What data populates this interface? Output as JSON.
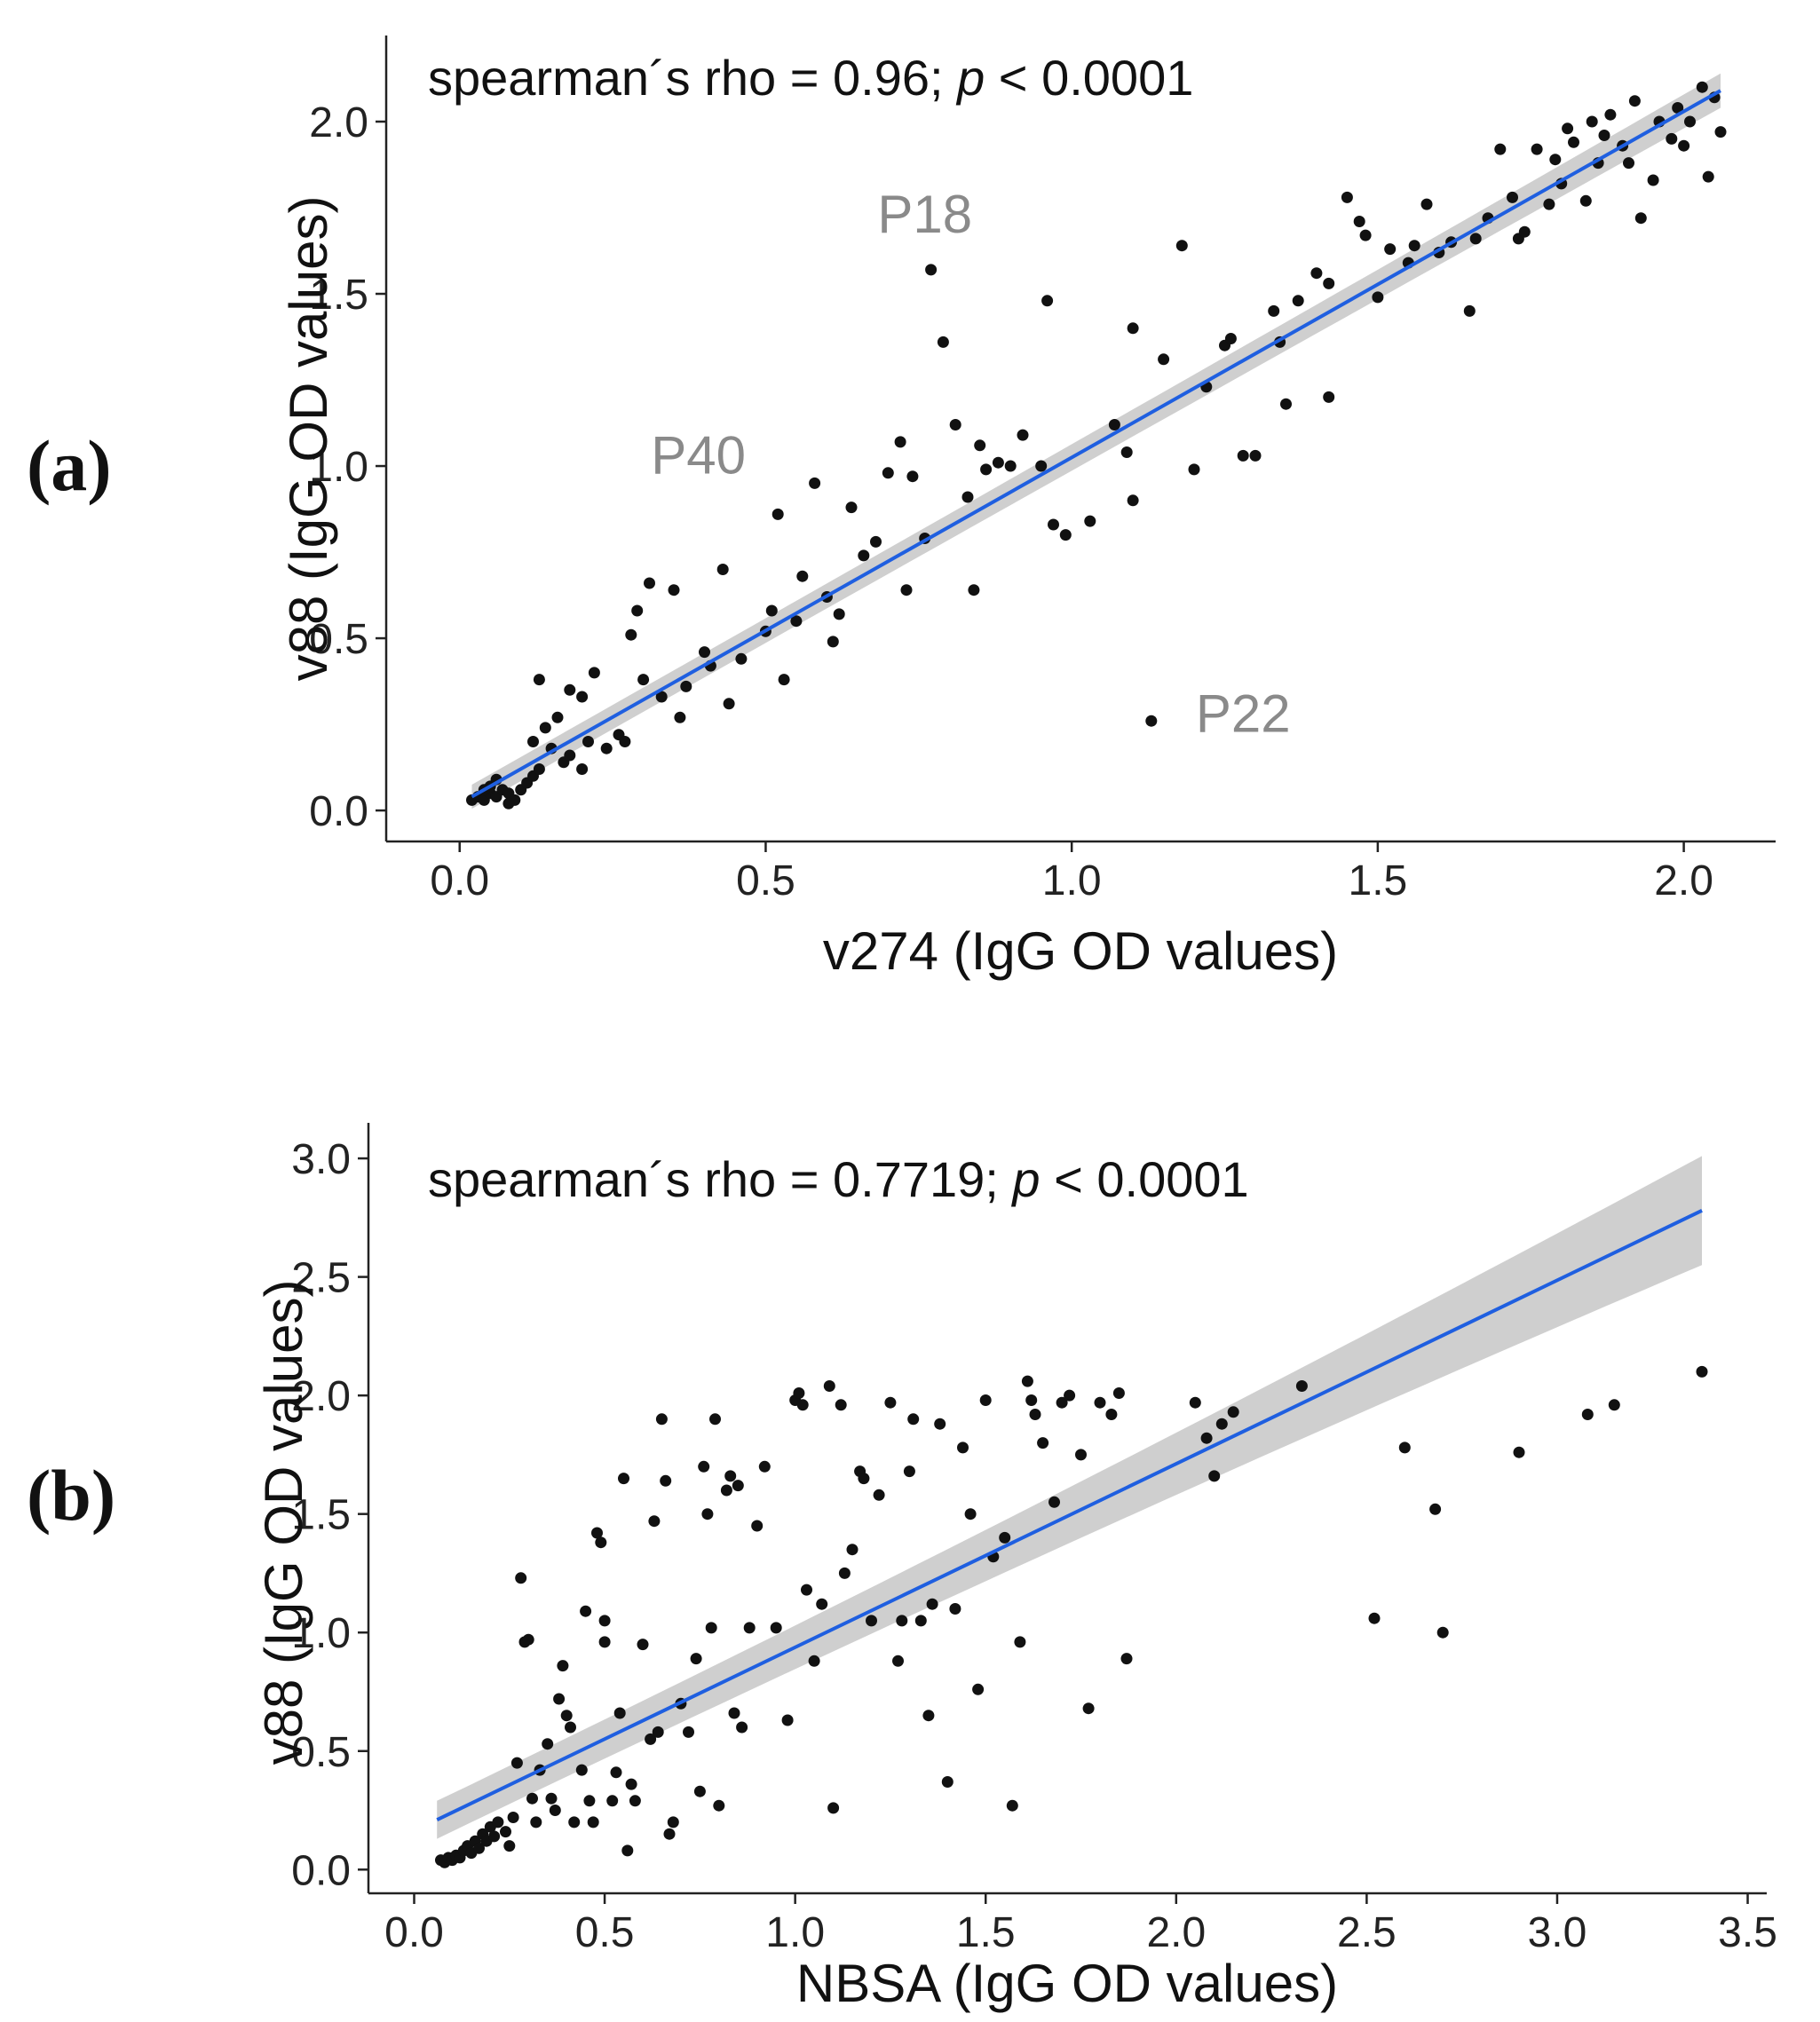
{
  "chart_data": [
    {
      "type": "scatter",
      "panel_label": "(a)",
      "title": "",
      "annotation": {
        "prefix": "spearman´s rho = 0.96; ",
        "italic": "p",
        "suffix": " < 0.0001"
      },
      "xlabel": "v274 (IgG OD values)",
      "ylabel": "v88 (IgG OD values)",
      "xlim": [
        -0.12,
        2.15
      ],
      "ylim": [
        -0.09,
        2.25
      ],
      "xticks": [
        0.0,
        0.5,
        1.0,
        1.5,
        2.0
      ],
      "yticks": [
        0.0,
        0.5,
        1.0,
        1.5,
        2.0
      ],
      "xtick_labels": [
        "0.0",
        "0.5",
        "1.0",
        "1.5",
        "2.0"
      ],
      "ytick_labels": [
        "0.0",
        "0.5",
        "1.0",
        "1.5",
        "2.0"
      ],
      "fit": {
        "x0": 0.02,
        "y0": 0.04,
        "x1": 2.06,
        "y1": 2.09,
        "ci_start": 0.035,
        "ci_end": 0.05
      },
      "line_color": "#1f5fe0",
      "ci_color": "#cfcfcf",
      "point_color": "#111111",
      "labels": [
        {
          "text": "P18",
          "x": 0.76,
          "y": 1.73
        },
        {
          "text": "P40",
          "x": 0.39,
          "y": 1.03
        },
        {
          "text": "P22",
          "x": 1.28,
          "y": 0.28
        }
      ],
      "points": [
        [
          0.02,
          0.03
        ],
        [
          0.03,
          0.04
        ],
        [
          0.04,
          0.03
        ],
        [
          0.05,
          0.05
        ],
        [
          0.06,
          0.04
        ],
        [
          0.07,
          0.06
        ],
        [
          0.08,
          0.05
        ],
        [
          0.05,
          0.07
        ],
        [
          0.06,
          0.09
        ],
        [
          0.09,
          0.03
        ],
        [
          0.1,
          0.06
        ],
        [
          0.11,
          0.08
        ],
        [
          0.08,
          0.02
        ],
        [
          0.04,
          0.06
        ],
        [
          0.12,
          0.1
        ],
        [
          0.13,
          0.12
        ],
        [
          0.12,
          0.2
        ],
        [
          0.14,
          0.24
        ],
        [
          0.15,
          0.18
        ],
        [
          0.17,
          0.14
        ],
        [
          0.18,
          0.16
        ],
        [
          0.2,
          0.12
        ],
        [
          0.21,
          0.2
        ],
        [
          0.16,
          0.27
        ],
        [
          0.18,
          0.35
        ],
        [
          0.2,
          0.33
        ],
        [
          0.13,
          0.38
        ],
        [
          0.22,
          0.4
        ],
        [
          0.24,
          0.18
        ],
        [
          0.26,
          0.22
        ],
        [
          0.27,
          0.2
        ],
        [
          0.28,
          0.51
        ],
        [
          0.29,
          0.58
        ],
        [
          0.3,
          0.38
        ],
        [
          0.31,
          0.66
        ],
        [
          0.33,
          0.33
        ],
        [
          0.35,
          0.64
        ],
        [
          0.36,
          0.27
        ],
        [
          0.37,
          0.36
        ],
        [
          0.4,
          0.46
        ],
        [
          0.41,
          0.42
        ],
        [
          0.43,
          0.7
        ],
        [
          0.44,
          0.31
        ],
        [
          0.46,
          0.44
        ],
        [
          0.5,
          0.52
        ],
        [
          0.51,
          0.58
        ],
        [
          0.52,
          0.86
        ],
        [
          0.53,
          0.38
        ],
        [
          0.55,
          0.55
        ],
        [
          0.56,
          0.68
        ],
        [
          0.58,
          0.95
        ],
        [
          0.6,
          0.62
        ],
        [
          0.61,
          0.49
        ],
        [
          0.62,
          0.57
        ],
        [
          0.64,
          0.88
        ],
        [
          0.66,
          0.74
        ],
        [
          0.68,
          0.78
        ],
        [
          0.7,
          0.98
        ],
        [
          0.72,
          1.07
        ],
        [
          0.73,
          0.64
        ],
        [
          0.74,
          0.97
        ],
        [
          0.76,
          0.79
        ],
        [
          0.77,
          1.57
        ],
        [
          0.79,
          1.36
        ],
        [
          0.81,
          1.12
        ],
        [
          0.83,
          0.91
        ],
        [
          0.84,
          0.64
        ],
        [
          0.85,
          1.06
        ],
        [
          0.86,
          0.99
        ],
        [
          0.88,
          1.01
        ],
        [
          0.9,
          1.0
        ],
        [
          0.92,
          1.09
        ],
        [
          0.96,
          1.48
        ],
        [
          0.97,
          0.83
        ],
        [
          0.99,
          0.8
        ],
        [
          1.03,
          0.84
        ],
        [
          1.07,
          1.12
        ],
        [
          1.09,
          1.04
        ],
        [
          1.1,
          0.9
        ],
        [
          1.1,
          1.4
        ],
        [
          1.15,
          1.31
        ],
        [
          1.18,
          1.64
        ],
        [
          1.2,
          0.99
        ],
        [
          1.22,
          1.23
        ],
        [
          1.25,
          1.35
        ],
        [
          1.26,
          1.37
        ],
        [
          1.28,
          1.03
        ],
        [
          1.3,
          1.03
        ],
        [
          1.33,
          1.45
        ],
        [
          1.34,
          1.36
        ],
        [
          1.35,
          1.18
        ],
        [
          1.37,
          1.48
        ],
        [
          1.4,
          1.56
        ],
        [
          1.42,
          1.53
        ],
        [
          1.42,
          1.2
        ],
        [
          1.45,
          1.78
        ],
        [
          1.47,
          1.71
        ],
        [
          1.48,
          1.67
        ],
        [
          1.5,
          1.49
        ],
        [
          1.52,
          1.63
        ],
        [
          1.55,
          1.59
        ],
        [
          1.56,
          1.64
        ],
        [
          1.58,
          1.76
        ],
        [
          1.6,
          1.62
        ],
        [
          1.62,
          1.65
        ],
        [
          1.65,
          1.45
        ],
        [
          1.66,
          1.66
        ],
        [
          1.68,
          1.72
        ],
        [
          1.7,
          1.92
        ],
        [
          1.72,
          1.78
        ],
        [
          1.73,
          1.66
        ],
        [
          1.74,
          1.68
        ],
        [
          1.76,
          1.92
        ],
        [
          1.78,
          1.76
        ],
        [
          1.79,
          1.89
        ],
        [
          1.8,
          1.82
        ],
        [
          1.81,
          1.98
        ],
        [
          1.82,
          1.94
        ],
        [
          1.84,
          1.77
        ],
        [
          1.85,
          2.0
        ],
        [
          1.86,
          1.88
        ],
        [
          1.87,
          1.96
        ],
        [
          1.88,
          2.02
        ],
        [
          1.9,
          1.93
        ],
        [
          1.91,
          1.88
        ],
        [
          1.92,
          2.06
        ],
        [
          1.93,
          1.72
        ],
        [
          1.95,
          1.83
        ],
        [
          1.96,
          2.0
        ],
        [
          1.98,
          1.95
        ],
        [
          1.99,
          2.04
        ],
        [
          2.0,
          1.93
        ],
        [
          2.01,
          2.0
        ],
        [
          2.03,
          2.1
        ],
        [
          2.04,
          1.84
        ],
        [
          2.05,
          2.07
        ],
        [
          2.06,
          1.97
        ],
        [
          0.95,
          1.0
        ],
        [
          1.13,
          0.26
        ]
      ]
    },
    {
      "type": "scatter",
      "panel_label": "(b)",
      "title": "",
      "annotation": {
        "prefix": "spearman´s rho = 0.7719; ",
        "italic": "p",
        "suffix": " < 0.0001"
      },
      "xlabel": "NBSA (IgG OD values)",
      "ylabel": "v88 (IgG OD values)",
      "xlim": [
        -0.12,
        3.55
      ],
      "ylim": [
        -0.1,
        3.15
      ],
      "xticks": [
        0.0,
        0.5,
        1.0,
        1.5,
        2.0,
        2.5,
        3.0,
        3.5
      ],
      "yticks": [
        0.0,
        0.5,
        1.0,
        1.5,
        2.0,
        2.5,
        3.0
      ],
      "xtick_labels": [
        "0.0",
        "0.5",
        "1.0",
        "1.5",
        "2.0",
        "2.5",
        "3.0",
        "3.5"
      ],
      "ytick_labels": [
        "0.0",
        "0.5",
        "1.0",
        "1.5",
        "2.0",
        "2.5",
        "3.0"
      ],
      "fit": {
        "x0": 0.06,
        "y0": 0.21,
        "x1": 3.38,
        "y1": 2.78,
        "ci_start": 0.08,
        "ci_end": 0.23
      },
      "line_color": "#1f5fe0",
      "ci_color": "#cfcfcf",
      "point_color": "#111111",
      "labels": [],
      "points": [
        [
          0.07,
          0.04
        ],
        [
          0.08,
          0.03
        ],
        [
          0.09,
          0.05
        ],
        [
          0.1,
          0.04
        ],
        [
          0.11,
          0.06
        ],
        [
          0.12,
          0.05
        ],
        [
          0.13,
          0.08
        ],
        [
          0.14,
          0.1
        ],
        [
          0.15,
          0.07
        ],
        [
          0.16,
          0.12
        ],
        [
          0.17,
          0.09
        ],
        [
          0.18,
          0.15
        ],
        [
          0.19,
          0.12
        ],
        [
          0.2,
          0.18
        ],
        [
          0.21,
          0.14
        ],
        [
          0.22,
          0.2
        ],
        [
          0.24,
          0.16
        ],
        [
          0.25,
          0.1
        ],
        [
          0.26,
          0.22
        ],
        [
          0.27,
          0.45
        ],
        [
          0.28,
          1.23
        ],
        [
          0.29,
          0.96
        ],
        [
          0.3,
          0.97
        ],
        [
          0.31,
          0.3
        ],
        [
          0.32,
          0.2
        ],
        [
          0.33,
          0.42
        ],
        [
          0.35,
          0.53
        ],
        [
          0.36,
          0.3
        ],
        [
          0.37,
          0.25
        ],
        [
          0.38,
          0.72
        ],
        [
          0.39,
          0.86
        ],
        [
          0.4,
          0.65
        ],
        [
          0.41,
          0.6
        ],
        [
          0.42,
          0.2
        ],
        [
          0.44,
          0.42
        ],
        [
          0.45,
          1.09
        ],
        [
          0.46,
          0.29
        ],
        [
          0.47,
          0.2
        ],
        [
          0.48,
          1.42
        ],
        [
          0.49,
          1.38
        ],
        [
          0.5,
          1.05
        ],
        [
          0.5,
          0.96
        ],
        [
          0.52,
          0.29
        ],
        [
          0.53,
          0.41
        ],
        [
          0.54,
          0.66
        ],
        [
          0.55,
          1.65
        ],
        [
          0.56,
          0.08
        ],
        [
          0.57,
          0.36
        ],
        [
          0.58,
          0.29
        ],
        [
          0.6,
          0.95
        ],
        [
          0.62,
          0.55
        ],
        [
          0.63,
          1.47
        ],
        [
          0.64,
          0.58
        ],
        [
          0.65,
          1.9
        ],
        [
          0.66,
          1.64
        ],
        [
          0.67,
          0.15
        ],
        [
          0.68,
          0.2
        ],
        [
          0.7,
          0.7
        ],
        [
          0.72,
          0.58
        ],
        [
          0.74,
          0.89
        ],
        [
          0.75,
          0.33
        ],
        [
          0.76,
          1.7
        ],
        [
          0.77,
          1.5
        ],
        [
          0.78,
          1.02
        ],
        [
          0.79,
          1.9
        ],
        [
          0.8,
          0.27
        ],
        [
          0.82,
          1.6
        ],
        [
          0.83,
          1.66
        ],
        [
          0.84,
          0.66
        ],
        [
          0.85,
          1.62
        ],
        [
          0.86,
          0.6
        ],
        [
          0.88,
          1.02
        ],
        [
          0.9,
          1.45
        ],
        [
          0.92,
          1.7
        ],
        [
          0.95,
          1.02
        ],
        [
          0.98,
          0.63
        ],
        [
          1.0,
          1.98
        ],
        [
          1.01,
          2.01
        ],
        [
          1.02,
          1.96
        ],
        [
          1.03,
          1.18
        ],
        [
          1.05,
          0.88
        ],
        [
          1.07,
          1.12
        ],
        [
          1.09,
          2.04
        ],
        [
          1.1,
          0.26
        ],
        [
          1.12,
          1.96
        ],
        [
          1.13,
          1.25
        ],
        [
          1.15,
          1.35
        ],
        [
          1.17,
          1.68
        ],
        [
          1.18,
          1.65
        ],
        [
          1.2,
          1.05
        ],
        [
          1.22,
          1.58
        ],
        [
          1.25,
          1.97
        ],
        [
          1.27,
          0.88
        ],
        [
          1.28,
          1.05
        ],
        [
          1.3,
          1.68
        ],
        [
          1.31,
          1.9
        ],
        [
          1.33,
          1.05
        ],
        [
          1.35,
          0.65
        ],
        [
          1.36,
          1.12
        ],
        [
          1.38,
          1.88
        ],
        [
          1.4,
          0.37
        ],
        [
          1.42,
          1.1
        ],
        [
          1.44,
          1.78
        ],
        [
          1.46,
          1.5
        ],
        [
          1.48,
          0.76
        ],
        [
          1.5,
          1.98
        ],
        [
          1.52,
          1.32
        ],
        [
          1.55,
          1.4
        ],
        [
          1.57,
          0.27
        ],
        [
          1.59,
          0.96
        ],
        [
          1.61,
          2.06
        ],
        [
          1.62,
          1.98
        ],
        [
          1.63,
          1.92
        ],
        [
          1.65,
          1.8
        ],
        [
          1.68,
          1.55
        ],
        [
          1.7,
          1.97
        ],
        [
          1.72,
          2.0
        ],
        [
          1.75,
          1.75
        ],
        [
          1.77,
          0.68
        ],
        [
          1.8,
          1.97
        ],
        [
          1.83,
          1.92
        ],
        [
          1.85,
          2.01
        ],
        [
          1.87,
          0.89
        ],
        [
          2.05,
          1.97
        ],
        [
          2.08,
          1.82
        ],
        [
          2.1,
          1.66
        ],
        [
          2.12,
          1.88
        ],
        [
          2.15,
          1.93
        ],
        [
          2.33,
          2.04
        ],
        [
          2.52,
          1.06
        ],
        [
          2.6,
          1.78
        ],
        [
          2.68,
          1.52
        ],
        [
          2.7,
          1.0
        ],
        [
          2.9,
          1.76
        ],
        [
          3.08,
          1.92
        ],
        [
          3.15,
          1.96
        ],
        [
          3.38,
          2.1
        ]
      ]
    }
  ]
}
